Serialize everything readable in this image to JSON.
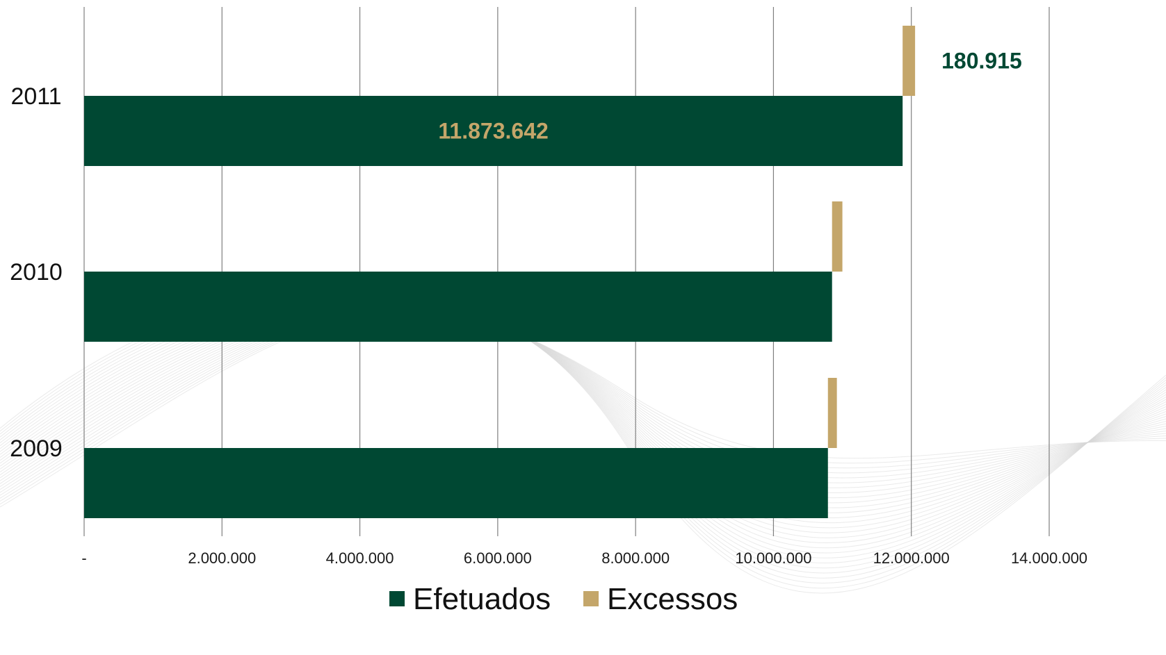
{
  "chart_data": {
    "type": "bar",
    "orientation": "horizontal",
    "categories": [
      "2011",
      "2010",
      "2009"
    ],
    "series": [
      {
        "name": "Efetuados",
        "color": "#004833",
        "values": [
          11873642,
          10850000,
          10790000
        ]
      },
      {
        "name": "Excessos",
        "color": "#C4A66A",
        "values": [
          180915,
          150000,
          130000
        ]
      }
    ],
    "data_labels": [
      {
        "series": 0,
        "category": 0,
        "text": "11.873.642",
        "color": "#C4A66A"
      },
      {
        "series": 1,
        "category": 0,
        "text": "180.915",
        "color": "#004833"
      }
    ],
    "xlim": [
      0,
      14000000
    ],
    "x_ticks": [
      0,
      2000000,
      4000000,
      6000000,
      8000000,
      10000000,
      12000000,
      14000000
    ],
    "x_tick_labels": [
      "-",
      "2.000.000",
      "4.000.000",
      "6.000.000",
      "8.000.000",
      "10.000.000",
      "12.000.000",
      "14.000.000"
    ],
    "grid": "vertical",
    "legend": {
      "position": "bottom",
      "entries": [
        "Efetuados",
        "Excessos"
      ]
    },
    "title": "",
    "xlabel": "",
    "ylabel": ""
  },
  "colors": {
    "gridline": "#7f7f7f",
    "background": "#ffffff"
  }
}
